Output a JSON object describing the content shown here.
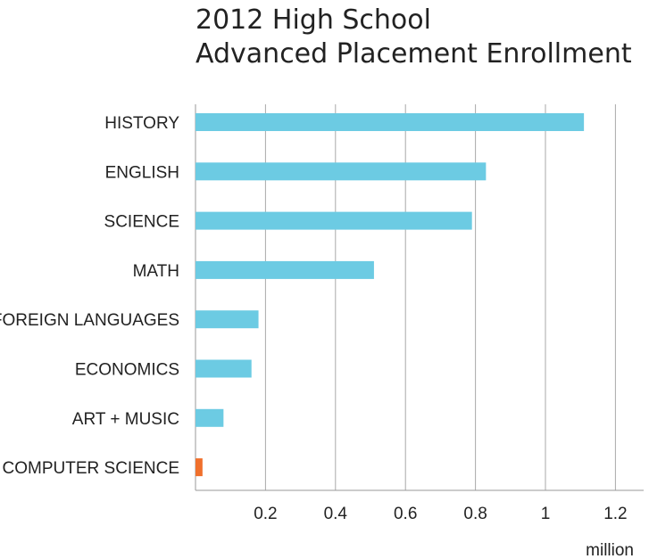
{
  "chart_data": {
    "type": "bar",
    "orientation": "horizontal",
    "title_lines": [
      "2012 High School",
      "Advanced Placement Enrollment"
    ],
    "categories": [
      "HISTORY",
      "ENGLISH",
      "SCIENCE",
      "MATH",
      "FOREIGN LANGUAGES",
      "ECONOMICS",
      "ART + MUSIC",
      "COMPUTER SCIENCE"
    ],
    "values": [
      1.11,
      0.83,
      0.79,
      0.51,
      0.18,
      0.16,
      0.08,
      0.02
    ],
    "bar_colors": [
      "#6ccbe3",
      "#6ccbe3",
      "#6ccbe3",
      "#6ccbe3",
      "#6ccbe3",
      "#6ccbe3",
      "#6ccbe3",
      "#f0702c"
    ],
    "x_ticks": [
      "0.2",
      "0.4",
      "0.6",
      "0.8",
      "1",
      "1.2"
    ],
    "x_tick_values": [
      0.2,
      0.4,
      0.6,
      0.8,
      1.0,
      1.2
    ],
    "xlim": [
      0,
      1.28
    ],
    "x_unit": "million",
    "grid": true,
    "legend": "none"
  }
}
